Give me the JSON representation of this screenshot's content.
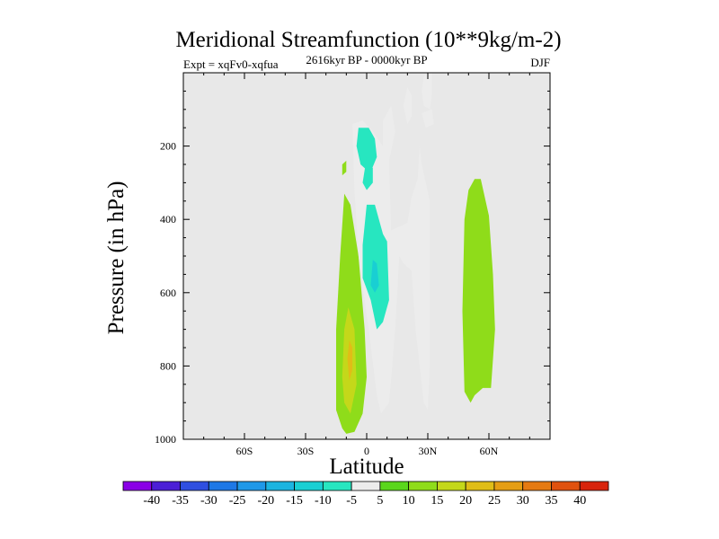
{
  "chart_data": {
    "type": "filled-contour",
    "title": "Meridional Streamfunction (10**9kg/m-2)",
    "left_string": "Expt = xqFv0-xqfua",
    "center_string": "2616kyr BP - 0000kyr BP",
    "right_string": "DJF",
    "xlabel": "Latitude",
    "ylabel": "Pressure (in hPa)",
    "xlim": [
      -90,
      90
    ],
    "ylim": [
      1000,
      0
    ],
    "y_reversed": true,
    "x_ticks": [
      {
        "value": -60,
        "label": "60S"
      },
      {
        "value": -30,
        "label": "30S"
      },
      {
        "value": 0,
        "label": "0"
      },
      {
        "value": 30,
        "label": "30N"
      },
      {
        "value": 60,
        "label": "60N"
      }
    ],
    "y_ticks": [
      {
        "value": 200,
        "label": "200"
      },
      {
        "value": 400,
        "label": "400"
      },
      {
        "value": 600,
        "label": "600"
      },
      {
        "value": 800,
        "label": "800"
      },
      {
        "value": 1000,
        "label": "1000"
      }
    ],
    "plot_background": "#e8e8e8",
    "colorbar": {
      "labels": [
        "-40",
        "-35",
        "-30",
        "-25",
        "-20",
        "-15",
        "-10",
        "-5",
        "5",
        "10",
        "15",
        "20",
        "25",
        "30",
        "35",
        "40"
      ],
      "colors": [
        "#8a00e6",
        "#4b1fd6",
        "#2f4fe0",
        "#1e78e6",
        "#1f98e8",
        "#1cb4e0",
        "#19cfd3",
        "#27e6c0",
        "#ececec",
        "#5ad61c",
        "#8fdc1a",
        "#c4d81a",
        "#e0bd17",
        "#e59e14",
        "#e57a12",
        "#e0520f",
        "#d8240c"
      ]
    },
    "regions": [
      {
        "name": "southern-positive-cell",
        "level": "10",
        "points": [
          [
            -12,
            970
          ],
          [
            -15,
            920
          ],
          [
            -15,
            700
          ],
          [
            -13,
            500
          ],
          [
            -11,
            330
          ],
          [
            -8,
            360
          ],
          [
            -4,
            500
          ],
          [
            -1,
            700
          ],
          [
            0,
            830
          ],
          [
            -2,
            930
          ],
          [
            -6,
            980
          ],
          [
            -10,
            985
          ]
        ]
      },
      {
        "name": "southern-positive-core",
        "level": "15",
        "points": [
          [
            -12,
            830
          ],
          [
            -11,
            700
          ],
          [
            -9,
            640
          ],
          [
            -6,
            700
          ],
          [
            -5,
            850
          ],
          [
            -8,
            930
          ],
          [
            -11,
            900
          ]
        ]
      },
      {
        "name": "southern-positive-peak",
        "level": "20",
        "points": [
          [
            -9.5,
            780
          ],
          [
            -8.5,
            730
          ],
          [
            -7,
            750
          ],
          [
            -7,
            810
          ],
          [
            -8.5,
            840
          ]
        ]
      },
      {
        "name": "southern-positive-small",
        "level": "10",
        "points": [
          [
            -12,
            250
          ],
          [
            -10,
            240
          ],
          [
            -10,
            270
          ],
          [
            -12,
            280
          ]
        ]
      },
      {
        "name": "equatorial-negative-cell",
        "level": "-5",
        "points": [
          [
            -7,
            140
          ],
          [
            -2,
            130
          ],
          [
            3,
            160
          ],
          [
            8,
            200
          ],
          [
            8,
            130
          ],
          [
            12,
            90
          ],
          [
            14,
            160
          ],
          [
            11,
            240
          ],
          [
            12,
            430
          ],
          [
            20,
            410
          ],
          [
            22,
            340
          ],
          [
            25,
            290
          ],
          [
            26,
            200
          ],
          [
            27,
            250
          ],
          [
            31,
            350
          ],
          [
            31,
            800
          ],
          [
            30,
            920
          ],
          [
            28,
            900
          ],
          [
            24,
            700
          ],
          [
            22,
            540
          ],
          [
            18,
            520
          ],
          [
            16,
            500
          ],
          [
            14,
            700
          ],
          [
            11,
            900
          ],
          [
            7,
            930
          ],
          [
            5,
            880
          ],
          [
            1,
            700
          ],
          [
            -4,
            500
          ],
          [
            -6,
            320
          ]
        ]
      },
      {
        "name": "upper-negative-core",
        "level": "-10",
        "points": [
          [
            -5,
            200
          ],
          [
            -4,
            150
          ],
          [
            1,
            150
          ],
          [
            4,
            180
          ],
          [
            5,
            230
          ],
          [
            2,
            270
          ],
          [
            -1,
            260
          ],
          [
            -3,
            250
          ]
        ]
      },
      {
        "name": "upper-negative-core2",
        "level": "-10",
        "points": [
          [
            -2,
            300
          ],
          [
            0,
            230
          ],
          [
            3,
            260
          ],
          [
            3,
            300
          ],
          [
            0,
            320
          ]
        ]
      },
      {
        "name": "mid-negative-core",
        "level": "-10",
        "points": [
          [
            -2,
            560
          ],
          [
            -2,
            470
          ],
          [
            0,
            360
          ],
          [
            4,
            360
          ],
          [
            8,
            440
          ],
          [
            10,
            460
          ],
          [
            11,
            620
          ],
          [
            8,
            680
          ],
          [
            5,
            700
          ],
          [
            2,
            620
          ]
        ]
      },
      {
        "name": "mid-negative-inner",
        "level": "-15",
        "points": [
          [
            2,
            580
          ],
          [
            3,
            510
          ],
          [
            5,
            520
          ],
          [
            6,
            580
          ],
          [
            4,
            600
          ]
        ]
      },
      {
        "name": "upper-tropo-plume",
        "level": "-5",
        "points": [
          [
            28,
            90
          ],
          [
            27,
            50
          ],
          [
            28,
            10
          ],
          [
            30,
            0
          ],
          [
            32,
            0
          ],
          [
            32,
            60
          ],
          [
            31,
            100
          ]
        ]
      },
      {
        "name": "upper-small-patch",
        "level": "-5",
        "points": [
          [
            20,
            140
          ],
          [
            18,
            90
          ],
          [
            20,
            40
          ],
          [
            22,
            60
          ],
          [
            22,
            120
          ]
        ]
      },
      {
        "name": "upper-small-patch2",
        "level": "-5",
        "points": [
          [
            27,
            110
          ],
          [
            32,
            100
          ],
          [
            33,
            140
          ],
          [
            29,
            150
          ]
        ]
      },
      {
        "name": "northern-positive-cell",
        "level": "10",
        "points": [
          [
            48,
            870
          ],
          [
            47,
            650
          ],
          [
            48,
            400
          ],
          [
            50,
            320
          ],
          [
            53,
            290
          ],
          [
            56,
            290
          ],
          [
            60,
            390
          ],
          [
            62,
            550
          ],
          [
            63,
            700
          ],
          [
            61,
            860
          ],
          [
            57,
            860
          ],
          [
            53,
            880
          ],
          [
            51,
            900
          ],
          [
            50,
            890
          ]
        ]
      }
    ]
  }
}
